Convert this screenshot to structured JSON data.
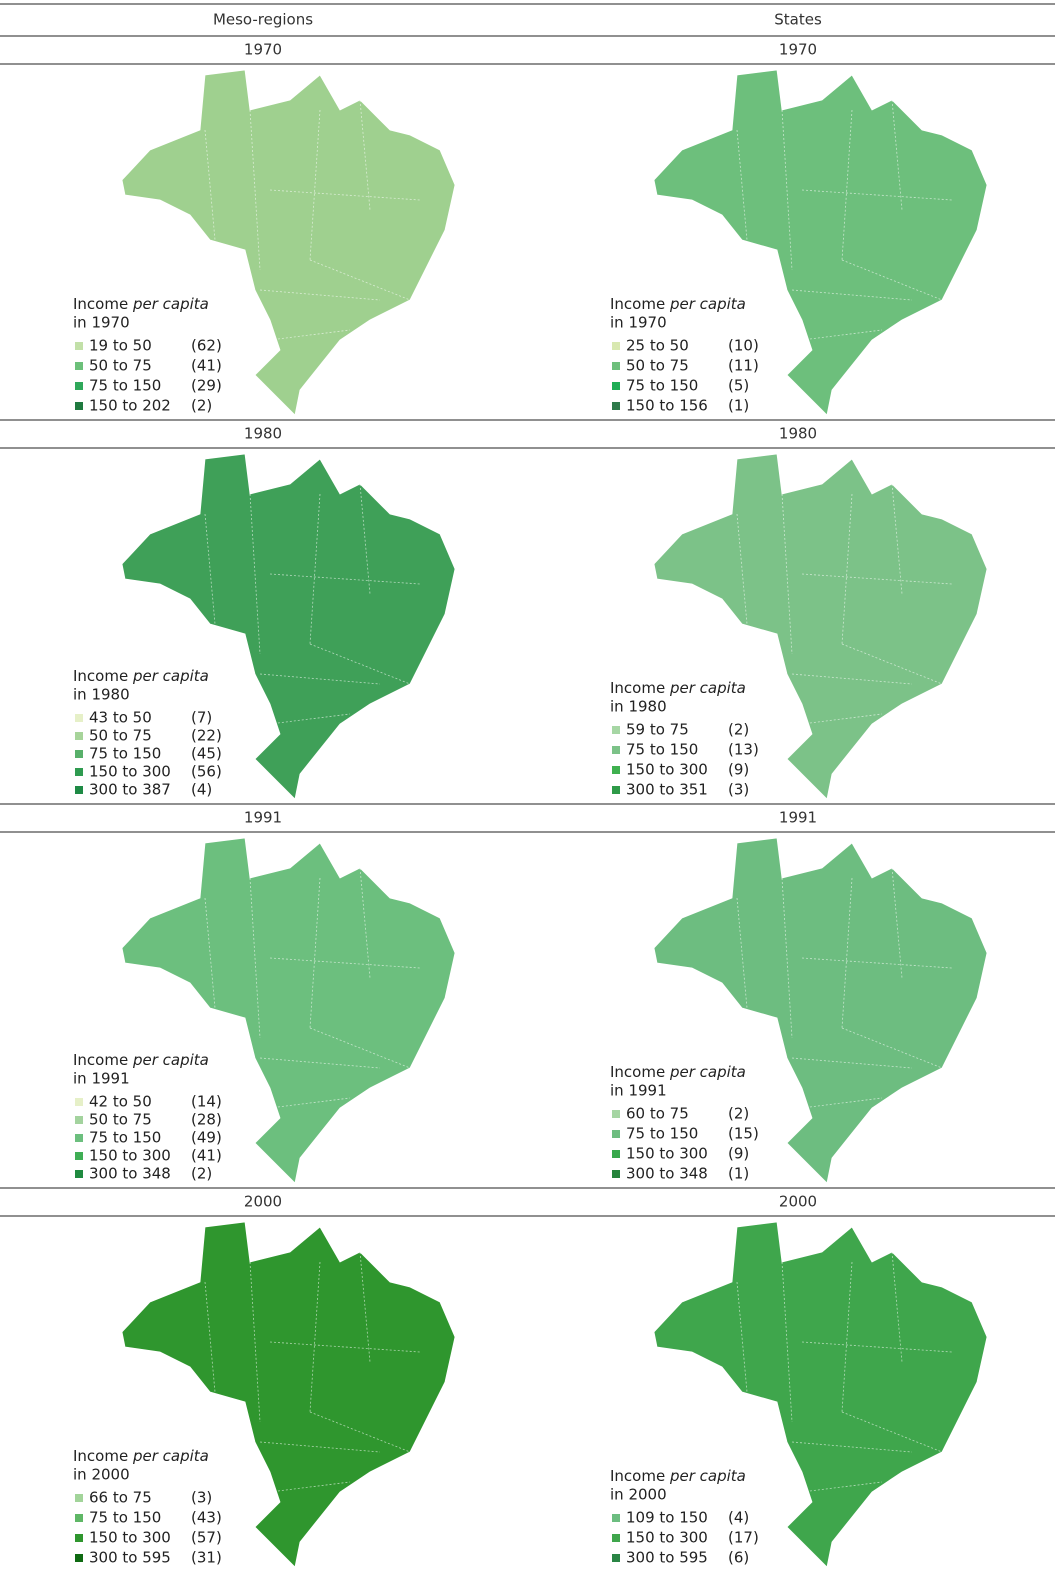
{
  "header": {
    "left": "Meso-regions",
    "right": "States"
  },
  "rows": [
    {
      "left": {
        "year": "1970",
        "title_prefix": "Income",
        "title_emphasis": "per capita",
        "title_year": "in 1970",
        "map_color": "#9fd08f",
        "legend": [
          {
            "range": "19 to 50",
            "count": "(62)",
            "color": "#c2e0a8"
          },
          {
            "range": "50 to 75",
            "count": "(41)",
            "color": "#6cc07a"
          },
          {
            "range": "75 to 150",
            "count": "(29)",
            "color": "#2fa85a"
          },
          {
            "range": "150 to 202",
            "count": "(2)",
            "color": "#1f7a3f"
          }
        ]
      },
      "right": {
        "year": "1970",
        "title_prefix": "Income",
        "title_emphasis": "per capita",
        "title_year": "in 1970",
        "map_color": "#6dbf7c",
        "legend": [
          {
            "range": "25 to 50",
            "count": "(10)",
            "color": "#d8e8b0"
          },
          {
            "range": "50 to 75",
            "count": "(11)",
            "color": "#6dbf7c"
          },
          {
            "range": "75 to 150",
            "count": "(5)",
            "color": "#1fad55"
          },
          {
            "range": "150 to 156",
            "count": "(1)",
            "color": "#2e7a4a"
          }
        ]
      }
    },
    {
      "left": {
        "year": "1980",
        "title_prefix": "Income",
        "title_emphasis": "per capita",
        "title_year": "in 1980",
        "map_color": "#3fa058",
        "legend": [
          {
            "range": "43 to 50",
            "count": "(7)",
            "color": "#e6f0c8"
          },
          {
            "range": "50 to 75",
            "count": "(22)",
            "color": "#a7d49a"
          },
          {
            "range": "75 to 150",
            "count": "(45)",
            "color": "#58b06a"
          },
          {
            "range": "150 to 300",
            "count": "(56)",
            "color": "#2f9b50"
          },
          {
            "range": "300 to 387",
            "count": "(4)",
            "color": "#1e8a45"
          }
        ]
      },
      "right": {
        "year": "1980",
        "title_prefix": "Income",
        "title_emphasis": "per capita",
        "title_year": "in 1980",
        "map_color": "#7cc288",
        "legend": [
          {
            "range": "59 to 75",
            "count": "(2)",
            "color": "#a6d6a4"
          },
          {
            "range": "75 to 150",
            "count": "(13)",
            "color": "#7cc288"
          },
          {
            "range": "150 to 300",
            "count": "(9)",
            "color": "#3fb04f"
          },
          {
            "range": "300 to 351",
            "count": "(3)",
            "color": "#2e9a48"
          }
        ]
      }
    },
    {
      "left": {
        "year": "1991",
        "title_prefix": "Income",
        "title_emphasis": "per capita",
        "title_year": "in 1991",
        "map_color": "#6cbf7e",
        "legend": [
          {
            "range": "42 to 50",
            "count": "(14)",
            "color": "#e6f0c8"
          },
          {
            "range": "50 to 75",
            "count": "(28)",
            "color": "#a3d39e"
          },
          {
            "range": "75 to 150",
            "count": "(49)",
            "color": "#6cbf7e"
          },
          {
            "range": "150 to 300",
            "count": "(41)",
            "color": "#3fae55"
          },
          {
            "range": "300 to 348",
            "count": "(2)",
            "color": "#1f8a40"
          }
        ]
      },
      "right": {
        "year": "1991",
        "title_prefix": "Income",
        "title_emphasis": "per capita",
        "title_year": "in 1991",
        "map_color": "#6dbd80",
        "legend": [
          {
            "range": "60 to 75",
            "count": "(2)",
            "color": "#a5d5a3"
          },
          {
            "range": "75 to 150",
            "count": "(15)",
            "color": "#6dbd80"
          },
          {
            "range": "150 to 300",
            "count": "(9)",
            "color": "#38a84c"
          },
          {
            "range": "300 to 348",
            "count": "(1)",
            "color": "#25843c"
          }
        ]
      }
    },
    {
      "left": {
        "year": "2000",
        "title_prefix": "Income",
        "title_emphasis": "per capita",
        "title_year": "in 2000",
        "map_color": "#2f962e",
        "legend": [
          {
            "range": "66 to 75",
            "count": "(3)",
            "color": "#a2d49a"
          },
          {
            "range": "75 to 150",
            "count": "(43)",
            "color": "#5fb766"
          },
          {
            "range": "150 to 300",
            "count": "(57)",
            "color": "#2f962e"
          },
          {
            "range": "300 to 595",
            "count": "(31)",
            "color": "#0e6a12"
          }
        ]
      },
      "right": {
        "year": "2000",
        "title_prefix": "Income",
        "title_emphasis": "per capita",
        "title_year": "in 2000",
        "map_color": "#3fa64c",
        "legend": [
          {
            "range": "109 to 150",
            "count": "(4)",
            "color": "#6cbd80"
          },
          {
            "range": "150 to 300",
            "count": "(17)",
            "color": "#3fa64c"
          },
          {
            "range": "300 to 595",
            "count": "(6)",
            "color": "#2a8545"
          }
        ]
      }
    }
  ]
}
